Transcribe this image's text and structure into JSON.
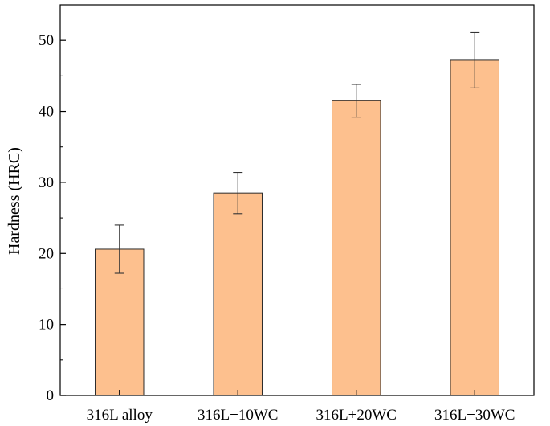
{
  "chart_data": {
    "type": "bar",
    "title": "",
    "xlabel": "",
    "ylabel": "Hardness (HRC)",
    "categories": [
      "316L alloy",
      "316L+10WC",
      "316L+20WC",
      "316L+30WC"
    ],
    "values": [
      20.6,
      28.5,
      41.5,
      47.2
    ],
    "errors": [
      3.4,
      2.9,
      2.3,
      3.9
    ],
    "ylim": [
      0,
      55
    ],
    "yticks": [
      0,
      10,
      20,
      30,
      40,
      50
    ],
    "grid": false,
    "legend": "none",
    "colors": {
      "bar_fill": "#fdc08e",
      "bar_stroke": "#2b2b2b",
      "axis": "#000000"
    }
  }
}
